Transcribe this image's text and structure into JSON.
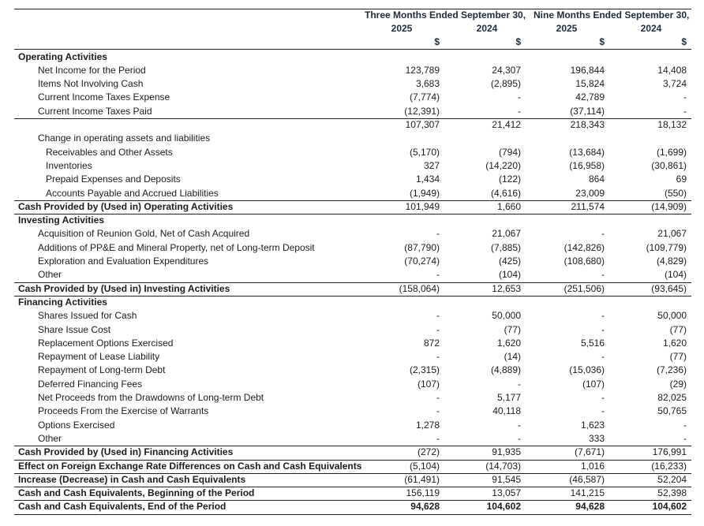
{
  "header": {
    "groups": [
      "Three Months Ended September 30,",
      "Nine Months Ended September 30,"
    ],
    "years": [
      "2025",
      "2024",
      "2025",
      "2024"
    ],
    "currency": [
      "$",
      "$",
      "$",
      "$"
    ]
  },
  "rows": [
    {
      "label": "Operating Activities"
    },
    {
      "label": "Net Income for the Period",
      "values": [
        "123,789",
        "24,307",
        "196,844",
        "14,408"
      ]
    },
    {
      "label": "Items Not Involving Cash",
      "values": [
        "3,683",
        "(2,895)",
        "15,824",
        "3,724"
      ]
    },
    {
      "label": "Current Income Taxes Expense",
      "values": [
        "(7,774)",
        "-",
        "42,789",
        "-"
      ]
    },
    {
      "label": "Current Income Taxes Paid",
      "values": [
        "(12,391)",
        "-",
        "(37,114)",
        "-"
      ]
    },
    {
      "values": [
        "107,307",
        "21,412",
        "218,343",
        "18,132"
      ]
    },
    {
      "label": "Change in operating assets and liabilities"
    },
    {
      "label": "Receivables and Other Assets",
      "values": [
        "(5,170)",
        "(794)",
        "(13,684)",
        "(1,699)"
      ]
    },
    {
      "label": "Inventories",
      "values": [
        "327",
        "(14,220)",
        "(16,958)",
        "(30,861)"
      ]
    },
    {
      "label": "Prepaid Expenses and Deposits",
      "values": [
        "1,434",
        "(122)",
        "864",
        "69"
      ]
    },
    {
      "label": "Accounts Payable and Accrued Liabilities",
      "values": [
        "(1,949)",
        "(4,616)",
        "23,009",
        "(550)"
      ]
    },
    {
      "label": "Cash Provided by (Used in) Operating Activities",
      "values": [
        "101,949",
        "1,660",
        "211,574",
        "(14,909)"
      ]
    },
    {
      "label": "Investing Activities"
    },
    {
      "label": "Acquisition of Reunion Gold, Net of Cash Acquired",
      "values": [
        "-",
        "21,067",
        "-",
        "21,067"
      ]
    },
    {
      "label": "Additions of PP&E and Mineral Property, net of Long-term Deposit",
      "values": [
        "(87,790)",
        "(7,885)",
        "(142,826)",
        "(109,779)"
      ]
    },
    {
      "label": "Exploration and Evaluation Expenditures",
      "values": [
        "(70,274)",
        "(425)",
        "(108,680)",
        "(4,829)"
      ]
    },
    {
      "label": "Other",
      "values": [
        "-",
        "(104)",
        "-",
        "(104)"
      ]
    },
    {
      "label": "Cash Provided by (Used in) Investing Activities",
      "values": [
        "(158,064)",
        "12,653",
        "(251,506)",
        "(93,645)"
      ]
    },
    {
      "label": "Financing Activities"
    },
    {
      "label": "Shares Issued for Cash",
      "values": [
        "-",
        "50,000",
        "-",
        "50,000"
      ]
    },
    {
      "label": "Share Issue Cost",
      "values": [
        "-",
        "(77)",
        "-",
        "(77)"
      ]
    },
    {
      "label": "Replacement Options Exercised",
      "values": [
        "872",
        "1,620",
        "5,516",
        "1,620"
      ]
    },
    {
      "label": "Repayment of Lease Liability",
      "values": [
        "-",
        "(14)",
        "-",
        "(77)"
      ]
    },
    {
      "label": "Repayment of Long-term Debt",
      "values": [
        "(2,315)",
        "(4,889)",
        "(15,036)",
        "(7,236)"
      ]
    },
    {
      "label": "Deferred Financing Fees",
      "values": [
        "(107)",
        "-",
        "(107)",
        "(29)"
      ]
    },
    {
      "label": "Net Proceeds from the Drawdowns of Long-term Debt",
      "values": [
        "-",
        "5,177",
        "-",
        "82,025"
      ]
    },
    {
      "label": "Proceeds From the Exercise of Warrants",
      "values": [
        "-",
        "40,118",
        "-",
        "50,765"
      ]
    },
    {
      "label": "Options Exercised",
      "values": [
        "1,278",
        "-",
        "1,623",
        "-"
      ]
    },
    {
      "label": "Other",
      "values": [
        "-",
        "-",
        "333",
        "-"
      ]
    },
    {
      "label": "Cash Provided by (Used in) Financing Activities",
      "values": [
        "(272)",
        "91,935",
        "(7,671)",
        "176,991"
      ]
    },
    {
      "label": "Effect on Foreign Exchange Rate Differences on Cash and Cash Equivalents",
      "values": [
        "(5,104)",
        "(14,703)",
        "1,016",
        "(16,233)"
      ]
    },
    {
      "label": "Increase (Decrease) in Cash and Cash Equivalents",
      "values": [
        "(61,491)",
        "91,545",
        "(46,587)",
        "52,204"
      ]
    },
    {
      "label": "Cash and Cash Equivalents, Beginning of the Period",
      "values": [
        "156,119",
        "13,057",
        "141,215",
        "52,398"
      ]
    },
    {
      "label": "Cash and Cash Equivalents, End of the Period",
      "values": [
        "94,628",
        "104,602",
        "94,628",
        "104,602"
      ]
    }
  ]
}
